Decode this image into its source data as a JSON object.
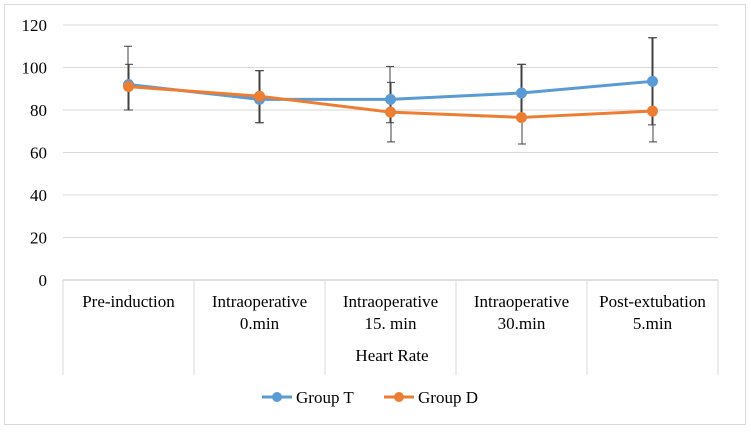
{
  "chart_data": {
    "type": "line",
    "title": "",
    "xlabel": "Heart Rate",
    "ylabel": "",
    "ylim": [
      0,
      120
    ],
    "yticks": [
      0,
      20,
      40,
      60,
      80,
      100,
      120
    ],
    "grid": true,
    "legend_position": "bottom",
    "categories": [
      [
        "Pre-induction"
      ],
      [
        "Intraoperative",
        "0.min"
      ],
      [
        "Intraoperative",
        "15. min"
      ],
      [
        "Intraoperative",
        "30.min"
      ],
      [
        "Post-extubation",
        "5.min"
      ]
    ],
    "series": [
      {
        "name": "Group T",
        "color": "#5B9BD5",
        "values": [
          92,
          85,
          85,
          88,
          93.5
        ],
        "error_low": [
          80,
          74,
          74,
          77,
          73
        ],
        "error_high": [
          110,
          98.5,
          100.5,
          101.5,
          114
        ]
      },
      {
        "name": "Group D",
        "color": "#ED7D31",
        "values": [
          91,
          86.5,
          79,
          76.5,
          79.5
        ],
        "error_low": [
          80,
          74,
          65,
          64,
          65
        ],
        "error_high": [
          101.5,
          98.5,
          93,
          101.5,
          114
        ]
      }
    ]
  }
}
